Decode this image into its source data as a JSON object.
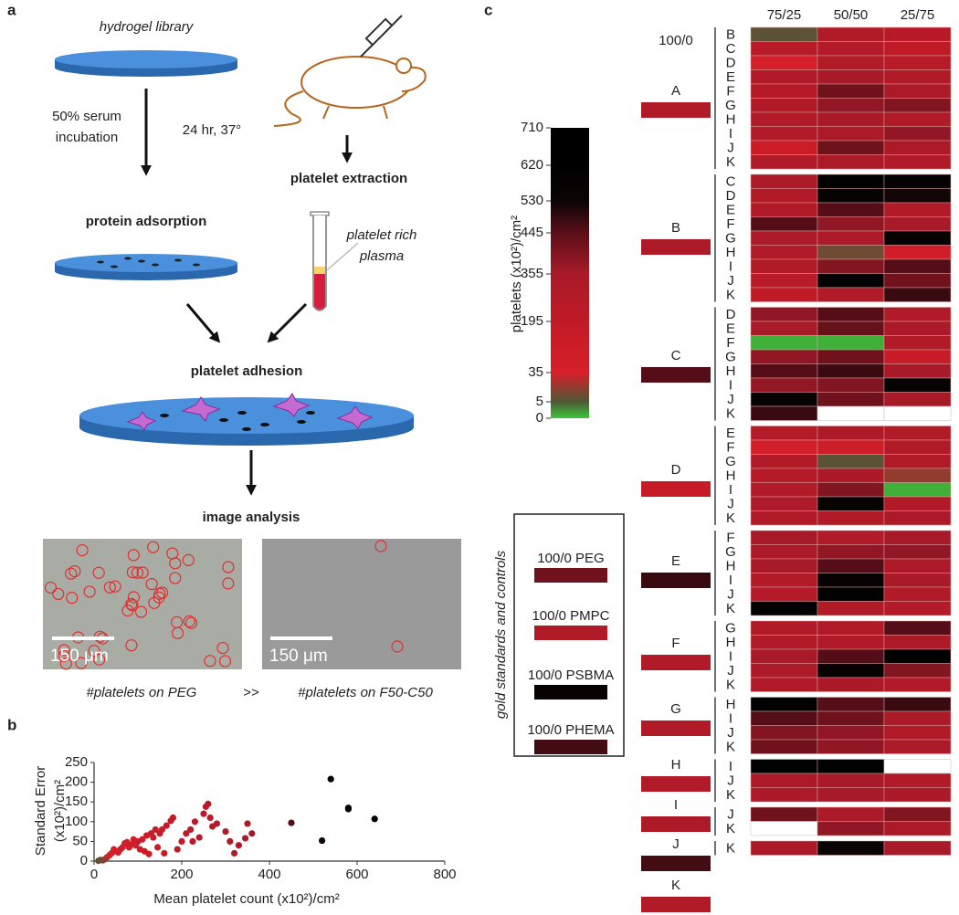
{
  "panel_a": {
    "label": "a",
    "hydrogel_library": "hydrogel library",
    "serum_line_1": "50% serum",
    "serum_line_2": "incubation",
    "conditions": "24 hr, 37°",
    "platelet_extraction": "platelet extraction",
    "protein_adsorption": "protein adsorption",
    "plasma_line_1": "platelet rich",
    "plasma_line_2": "plasma",
    "platelet_adhesion": "platelet adhesion",
    "image_analysis": "image analysis",
    "scale_bar_left": "150 μm",
    "scale_bar_right": "150 μm",
    "caption_left": "#platelets on PEG",
    "comparison": ">>",
    "caption_right": "#platelets on F50-C50"
  },
  "chart_data": [
    {
      "type": "scatter",
      "label": "b",
      "xlabel": "Mean platelet count (x10²)/cm²",
      "ylabel": [
        "Standard Error",
        "(x10²)/cm²"
      ],
      "x": [
        540,
        580,
        580,
        640,
        450,
        520,
        350,
        360,
        345,
        330,
        320,
        270,
        260,
        255,
        250,
        230,
        220,
        210,
        200,
        180,
        175,
        165,
        155,
        150,
        140,
        135,
        130,
        120,
        110,
        100,
        95,
        90,
        80,
        70,
        60,
        50,
        40,
        30,
        25,
        20,
        15,
        10,
        35,
        45,
        55,
        65,
        75,
        85,
        105,
        115,
        125,
        145,
        160,
        190,
        240,
        300,
        310,
        280,
        265,
        225
      ],
      "values": [
        208,
        135,
        132,
        107,
        97,
        52,
        95,
        70,
        58,
        40,
        20,
        88,
        145,
        138,
        120,
        100,
        80,
        70,
        50,
        110,
        102,
        90,
        80,
        70,
        80,
        60,
        70,
        65,
        55,
        50,
        40,
        55,
        35,
        45,
        30,
        25,
        20,
        10,
        5,
        2,
        3,
        1,
        15,
        30,
        22,
        35,
        48,
        42,
        30,
        25,
        18,
        35,
        20,
        30,
        60,
        75,
        50,
        95,
        110,
        50
      ],
      "color_by": "x",
      "xlim": [
        0,
        800
      ],
      "ylim": [
        0,
        250
      ],
      "xticks": [
        0,
        200,
        400,
        600,
        800
      ],
      "yticks": [
        0,
        50,
        100,
        150,
        200,
        250
      ]
    },
    {
      "type": "heatmap",
      "label": "c",
      "base_column": "100/0",
      "columns": [
        "75/25",
        "50/50",
        "25/75"
      ],
      "groups": [
        {
          "name": "A",
          "base_value": 300,
          "rows": [
            "B",
            "C",
            "D",
            "E",
            "F",
            "G",
            "H",
            "I",
            "J",
            "K"
          ],
          "values": [
            [
              8,
              300,
              250
            ],
            [
              250,
              280,
              200
            ],
            [
              60,
              300,
              250
            ],
            [
              300,
              350,
              300
            ],
            [
              280,
              420,
              330
            ],
            [
              300,
              380,
              400
            ],
            [
              300,
              350,
              300
            ],
            [
              300,
              330,
              380
            ],
            [
              120,
              420,
              330
            ],
            [
              300,
              330,
              300
            ]
          ]
        },
        {
          "name": "B",
          "base_value": 330,
          "rows": [
            "C",
            "D",
            "E",
            "F",
            "G",
            "H",
            "I",
            "J",
            "K"
          ],
          "values": [
            [
              330,
              600,
              580
            ],
            [
              300,
              560,
              520
            ],
            [
              300,
              450,
              300
            ],
            [
              450,
              380,
              350
            ],
            [
              320,
              330,
              560
            ],
            [
              300,
              12,
              90
            ],
            [
              300,
              400,
              450
            ],
            [
              250,
              580,
              420
            ],
            [
              200,
              300,
              480
            ]
          ]
        },
        {
          "name": "C",
          "base_value": 450,
          "rows": [
            "D",
            "E",
            "F",
            "G",
            "H",
            "I",
            "J",
            "K"
          ],
          "values": [
            [
              380,
              450,
              300
            ],
            [
              350,
              430,
              330
            ],
            [
              1,
              1,
              300
            ],
            [
              380,
              420,
              150
            ],
            [
              450,
              480,
              350
            ],
            [
              380,
              400,
              560
            ],
            [
              560,
              420,
              350
            ],
            [
              480,
              null,
              null
            ]
          ]
        },
        {
          "name": "D",
          "base_value": 150,
          "rows": [
            "E",
            "F",
            "G",
            "H",
            "I",
            "J",
            "K"
          ],
          "values": [
            [
              280,
              330,
              300
            ],
            [
              60,
              100,
              300
            ],
            [
              300,
              8,
              300
            ],
            [
              280,
              330,
              20
            ],
            [
              300,
              400,
              1
            ],
            [
              320,
              550,
              300
            ],
            [
              300,
              300,
              330
            ]
          ]
        },
        {
          "name": "E",
          "base_value": 480,
          "rows": [
            "F",
            "G",
            "H",
            "I",
            "J",
            "K"
          ],
          "values": [
            [
              350,
              300,
              350
            ],
            [
              330,
              380,
              380
            ],
            [
              350,
              450,
              330
            ],
            [
              300,
              560,
              350
            ],
            [
              280,
              600,
              300
            ],
            [
              600,
              300,
              280
            ]
          ]
        },
        {
          "name": "F",
          "base_value": 300,
          "rows": [
            "G",
            "H",
            "I",
            "J",
            "K"
          ],
          "values": [
            [
              300,
              300,
              450
            ],
            [
              300,
              300,
              330
            ],
            [
              350,
              450,
              600
            ],
            [
              330,
              560,
              400
            ],
            [
              300,
              330,
              300
            ]
          ]
        },
        {
          "name": "G",
          "base_value": 300,
          "rows": [
            "H",
            "I",
            "J",
            "K"
          ],
          "values": [
            [
              600,
              450,
              480
            ],
            [
              450,
              420,
              330
            ],
            [
              400,
              380,
              300
            ],
            [
              420,
              380,
              330
            ]
          ]
        },
        {
          "name": "H",
          "base_value": 300,
          "rows": [
            "I",
            "J",
            "K"
          ],
          "values": [
            [
              600,
              600,
              null
            ],
            [
              330,
              350,
              300
            ],
            [
              330,
              350,
              330
            ]
          ]
        },
        {
          "name": "I",
          "base_value": 330,
          "rows": [
            "J",
            "K"
          ],
          "values": [
            [
              420,
              330,
              400
            ],
            [
              null,
              380,
              330
            ]
          ]
        },
        {
          "name": "J",
          "base_value": 470,
          "rows": [
            "K"
          ],
          "values": [
            [
              330,
              550,
              350
            ]
          ]
        },
        {
          "name": "K",
          "base_value": 300,
          "rows": [],
          "values": []
        }
      ],
      "colorbar": {
        "label": "platelets (x10²)/cm²",
        "ticks": [
          0,
          5,
          35,
          195,
          355,
          445,
          530,
          620,
          710
        ],
        "colors": [
          "#3ec63a",
          "#4e5836",
          "#d6202a",
          "#c11a26",
          "#a81a28",
          "#5a0f18",
          "#0a0505",
          "#000000",
          "#000000"
        ]
      },
      "clim": [
        0,
        710
      ],
      "controls": {
        "title": "gold standards and controls",
        "items": [
          {
            "name": "100/0 PEG",
            "value": 420
          },
          {
            "name": "100/0 PMPC",
            "value": 300
          },
          {
            "name": "100/0 PSBMA",
            "value": 560
          },
          {
            "name": "100/0 PHEMA",
            "value": 470
          }
        ]
      }
    }
  ]
}
